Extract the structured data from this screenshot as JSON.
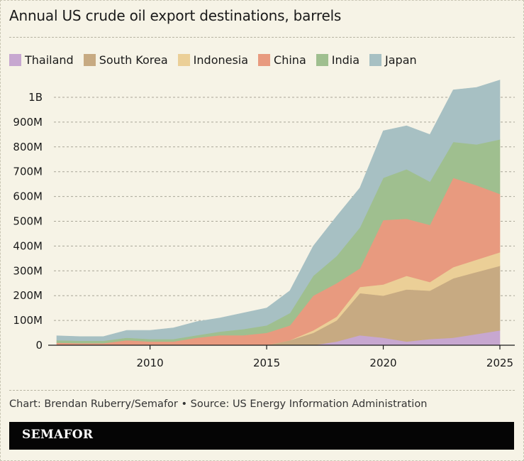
{
  "header": {
    "title": "Annual US crude oil export destinations, barrels"
  },
  "footer": {
    "credit": "Chart: Brendan Ruberry/Semafor • Source: US Energy Information Administration",
    "brand": "SEMAFOR"
  },
  "chart_data": {
    "type": "area",
    "stacked": true,
    "title": "Annual US crude oil export destinations, barrels",
    "xlabel": "",
    "ylabel": "",
    "x": [
      2006,
      2007,
      2008,
      2009,
      2010,
      2011,
      2012,
      2013,
      2014,
      2015,
      2016,
      2017,
      2018,
      2019,
      2020,
      2021,
      2022,
      2023,
      2024,
      2025
    ],
    "xlim": [
      2006,
      2025
    ],
    "ylim": [
      0,
      1100000000
    ],
    "x_ticks": [
      2010,
      2015,
      2020,
      2025
    ],
    "y_ticks": [
      {
        "value": 0,
        "label": "0"
      },
      {
        "value": 100000000,
        "label": "100M"
      },
      {
        "value": 200000000,
        "label": "200M"
      },
      {
        "value": 300000000,
        "label": "300M"
      },
      {
        "value": 400000000,
        "label": "400M"
      },
      {
        "value": 500000000,
        "label": "500M"
      },
      {
        "value": 600000000,
        "label": "600M"
      },
      {
        "value": 700000000,
        "label": "700M"
      },
      {
        "value": 800000000,
        "label": "800M"
      },
      {
        "value": 900000000,
        "label": "900M"
      },
      {
        "value": 1000000000,
        "label": "1B"
      }
    ],
    "grid": true,
    "legend_position": "top-left",
    "series": [
      {
        "name": "Thailand",
        "color": "#c7a7d0",
        "values": [
          0,
          0,
          0,
          0,
          0,
          0,
          0,
          0,
          0,
          0,
          0,
          0,
          15000000,
          40000000,
          30000000,
          15000000,
          25000000,
          30000000,
          45000000,
          60000000
        ]
      },
      {
        "name": "South Korea",
        "color": "#c7aa82",
        "values": [
          0,
          0,
          0,
          0,
          0,
          0,
          0,
          0,
          0,
          0,
          20000000,
          50000000,
          85000000,
          170000000,
          170000000,
          210000000,
          195000000,
          240000000,
          250000000,
          260000000
        ]
      },
      {
        "name": "Indonesia",
        "color": "#ebcf97",
        "values": [
          0,
          0,
          0,
          0,
          0,
          0,
          0,
          0,
          0,
          0,
          0,
          10000000,
          15000000,
          25000000,
          45000000,
          55000000,
          35000000,
          45000000,
          50000000,
          55000000
        ]
      },
      {
        "name": "China",
        "color": "#e89a7f",
        "values": [
          10000000,
          8000000,
          8000000,
          20000000,
          15000000,
          15000000,
          30000000,
          40000000,
          40000000,
          50000000,
          60000000,
          140000000,
          135000000,
          75000000,
          260000000,
          230000000,
          230000000,
          360000000,
          300000000,
          235000000
        ]
      },
      {
        "name": "India",
        "color": "#9fbf8f",
        "values": [
          10000000,
          10000000,
          10000000,
          10000000,
          10000000,
          10000000,
          10000000,
          15000000,
          25000000,
          30000000,
          50000000,
          80000000,
          110000000,
          165000000,
          170000000,
          200000000,
          175000000,
          145000000,
          165000000,
          220000000
        ]
      },
      {
        "name": "Japan",
        "color": "#a7c0c3",
        "values": [
          18000000,
          17000000,
          17000000,
          30000000,
          35000000,
          45000000,
          55000000,
          55000000,
          65000000,
          70000000,
          90000000,
          120000000,
          160000000,
          160000000,
          190000000,
          175000000,
          190000000,
          210000000,
          230000000,
          240000000
        ]
      }
    ]
  }
}
